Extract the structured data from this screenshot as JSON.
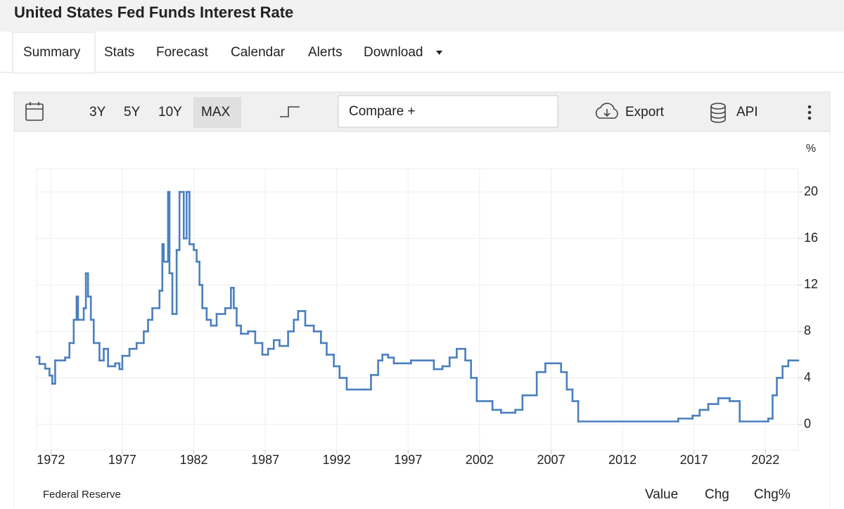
{
  "header": {
    "title": "United States Fed Funds Interest Rate"
  },
  "tabs": [
    "Summary",
    "Stats",
    "Forecast",
    "Calendar",
    "Alerts",
    "Download"
  ],
  "toolbar": {
    "ranges": [
      "3Y",
      "5Y",
      "10Y",
      "MAX"
    ],
    "compare_placeholder": "Compare +",
    "export": "Export",
    "api": "API"
  },
  "chart_data": {
    "type": "line",
    "step": true,
    "unit": "%",
    "color": "#4a7fbf",
    "grid": true,
    "source": "Federal Reserve",
    "x": [
      1971.0,
      1971.2,
      1971.6,
      1971.9,
      1972.1,
      1972.3,
      1973.0,
      1973.3,
      1973.6,
      1973.8,
      1973.9,
      1974.3,
      1974.45,
      1974.6,
      1974.8,
      1975.0,
      1975.4,
      1975.7,
      1976.0,
      1976.5,
      1976.8,
      1977.0,
      1977.5,
      1978.0,
      1978.5,
      1978.8,
      1979.1,
      1979.6,
      1979.8,
      1979.9,
      1980.2,
      1980.3,
      1980.5,
      1980.8,
      1981.0,
      1981.3,
      1981.5,
      1981.7,
      1982.0,
      1982.2,
      1982.4,
      1982.6,
      1982.9,
      1983.2,
      1983.6,
      1984.2,
      1984.6,
      1984.8,
      1985.0,
      1985.3,
      1985.8,
      1986.3,
      1986.8,
      1987.2,
      1987.6,
      1988.0,
      1988.6,
      1989.0,
      1989.3,
      1989.8,
      1990.4,
      1990.9,
      1991.3,
      1991.8,
      1992.2,
      1992.7,
      1994.0,
      1994.4,
      1994.9,
      1995.2,
      1995.6,
      1996.0,
      1997.2,
      1998.8,
      1999.4,
      1999.9,
      2000.4,
      2001.0,
      2001.4,
      2001.8,
      2002.9,
      2003.5,
      2004.5,
      2005.0,
      2006.0,
      2006.6,
      2007.7,
      2008.1,
      2008.5,
      2008.9,
      2015.9,
      2016.9,
      2017.4,
      2018.0,
      2018.7,
      2019.5,
      2020.2,
      2022.2,
      2022.5,
      2022.8,
      2023.2,
      2023.6
    ],
    "values": [
      5.8,
      5.2,
      4.8,
      4.2,
      3.5,
      5.5,
      5.75,
      7.0,
      9.0,
      11.0,
      9.0,
      10.0,
      13.0,
      11.0,
      9.0,
      7.0,
      5.5,
      6.5,
      5.0,
      5.25,
      4.75,
      5.9,
      6.5,
      7.0,
      8.0,
      9.0,
      10.0,
      11.5,
      15.5,
      14.0,
      20.0,
      13.0,
      9.5,
      15.0,
      20.0,
      16.0,
      20.0,
      15.5,
      15.0,
      14.0,
      12.0,
      10.0,
      9.0,
      8.5,
      9.5,
      10.0,
      11.75,
      10.0,
      8.5,
      7.8,
      8.0,
      7.0,
      6.0,
      6.5,
      7.25,
      6.75,
      8.0,
      9.0,
      9.75,
      8.5,
      8.0,
      7.0,
      6.0,
      5.0,
      4.0,
      3.0,
      3.0,
      4.25,
      5.5,
      6.0,
      5.75,
      5.25,
      5.5,
      4.75,
      5.0,
      5.75,
      6.5,
      5.5,
      4.0,
      2.0,
      1.25,
      1.0,
      1.25,
      2.5,
      4.5,
      5.25,
      4.5,
      3.0,
      2.0,
      0.25,
      0.5,
      0.75,
      1.25,
      1.75,
      2.25,
      2.0,
      0.25,
      0.5,
      2.5,
      4.0,
      5.0,
      5.5
    ],
    "xlim": [
      1971,
      2024.3
    ],
    "xticks": [
      1972,
      1977,
      1982,
      1987,
      1992,
      1997,
      2002,
      2007,
      2012,
      2017,
      2022
    ],
    "ylim": [
      -2.2,
      22
    ],
    "yticks": [
      0,
      4,
      8,
      12,
      16,
      20
    ]
  },
  "footer": {
    "views": [
      "Value",
      "Chg",
      "Chg%"
    ]
  }
}
